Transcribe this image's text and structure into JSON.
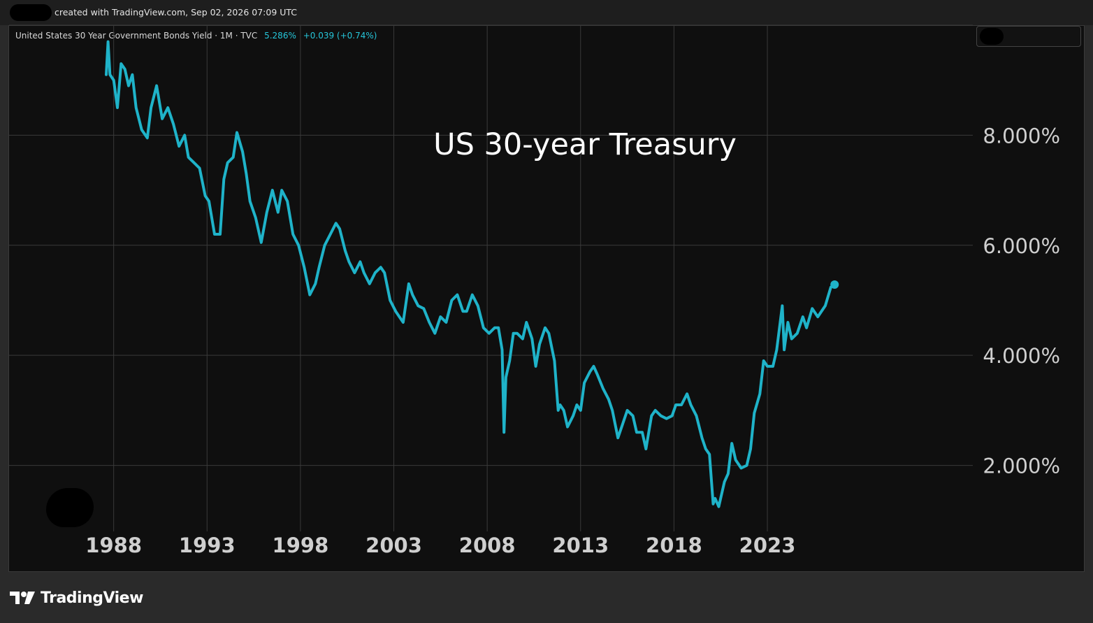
{
  "header": {
    "created_text": "created with TradingView.com, Sep 02, 2026 07:09 UTC"
  },
  "legend": {
    "symbol_text": "United States 30 Year Government Bonds Yield · 1M · TVC",
    "last_value": "5.286%",
    "change": "+0.039 (+0.74%)"
  },
  "footer": {
    "brand": "TradingView"
  },
  "colors": {
    "line": "#1fb3c9",
    "background": "#0f0f0f",
    "grid": "#3a3a3a",
    "axis_text": "#cfcfcf",
    "accent": "#26c6da"
  },
  "chart_data": {
    "type": "line",
    "title": "US 30-year Treasury",
    "xlabel": "",
    "ylabel": "",
    "ylim": [
      0.8,
      10.0
    ],
    "xlim": [
      1982.4,
      2034.0
    ],
    "grid": true,
    "y_ticks": [
      {
        "value": 2,
        "label": "2.000%"
      },
      {
        "value": 4,
        "label": "4.000%"
      },
      {
        "value": 6,
        "label": "6.000%"
      },
      {
        "value": 8,
        "label": "8.000%"
      }
    ],
    "x_ticks": [
      {
        "value": 1988,
        "label": "1988"
      },
      {
        "value": 1993,
        "label": "1993"
      },
      {
        "value": 1998,
        "label": "1998"
      },
      {
        "value": 2003,
        "label": "2003"
      },
      {
        "value": 2008,
        "label": "2008"
      },
      {
        "value": 2013,
        "label": "2013"
      },
      {
        "value": 2018,
        "label": "2018"
      },
      {
        "value": 2023,
        "label": "2023"
      }
    ],
    "series": [
      {
        "x": [
          1987.6,
          1987.7,
          1987.8,
          1988.0,
          1988.2,
          1988.4,
          1988.6,
          1988.8,
          1989.0,
          1989.2,
          1989.5,
          1989.8,
          1990.0,
          1990.3,
          1990.6,
          1990.9,
          1991.2,
          1991.5,
          1991.8,
          1992.0,
          1992.3,
          1992.6,
          1992.9,
          1993.1,
          1993.4,
          1993.7,
          1993.9,
          1994.1,
          1994.4,
          1994.6,
          1994.9,
          1995.1,
          1995.3,
          1995.6,
          1995.9,
          1996.2,
          1996.5,
          1996.8,
          1997.0,
          1997.3,
          1997.6,
          1997.9,
          1998.2,
          1998.5,
          1998.8,
          1999.0,
          1999.3,
          1999.6,
          1999.9,
          2000.1,
          2000.4,
          2000.6,
          2000.9,
          2001.2,
          2001.4,
          2001.7,
          2002.0,
          2002.3,
          2002.5,
          2002.8,
          2003.1,
          2003.3,
          2003.5,
          2003.8,
          2004.0,
          2004.3,
          2004.6,
          2004.9,
          2005.2,
          2005.5,
          2005.8,
          2006.1,
          2006.4,
          2006.7,
          2006.9,
          2007.2,
          2007.5,
          2007.8,
          2008.1,
          2008.4,
          2008.6,
          2008.8,
          2008.9,
          2009.0,
          2009.2,
          2009.4,
          2009.6,
          2009.9,
          2010.1,
          2010.4,
          2010.6,
          2010.8,
          2011.1,
          2011.3,
          2011.6,
          2011.8,
          2011.9,
          2012.1,
          2012.3,
          2012.6,
          2012.8,
          2013.0,
          2013.2,
          2013.5,
          2013.7,
          2013.9,
          2014.2,
          2014.5,
          2014.7,
          2015.0,
          2015.2,
          2015.5,
          2015.8,
          2016.0,
          2016.3,
          2016.5,
          2016.8,
          2017.0,
          2017.3,
          2017.6,
          2017.9,
          2018.1,
          2018.4,
          2018.7,
          2018.9,
          2019.2,
          2019.5,
          2019.7,
          2019.9,
          2020.1,
          2020.2,
          2020.4,
          2020.7,
          2020.9,
          2021.1,
          2021.3,
          2021.6,
          2021.9,
          2022.1,
          2022.3,
          2022.6,
          2022.8,
          2023.0,
          2023.3,
          2023.5,
          2023.8,
          2023.9,
          2024.1,
          2024.3,
          2024.6,
          2024.9,
          2025.1,
          2025.4,
          2025.7,
          2025.9,
          2026.1,
          2026.4,
          2026.6
        ],
        "values": [
          9.1,
          9.7,
          9.1,
          9.0,
          8.5,
          9.3,
          9.2,
          8.9,
          9.1,
          8.5,
          8.1,
          7.95,
          8.5,
          8.9,
          8.3,
          8.5,
          8.2,
          7.8,
          8.0,
          7.6,
          7.5,
          7.4,
          6.9,
          6.8,
          6.2,
          6.2,
          7.2,
          7.5,
          7.6,
          8.05,
          7.7,
          7.3,
          6.8,
          6.5,
          6.05,
          6.6,
          7.0,
          6.6,
          7.0,
          6.8,
          6.2,
          6.0,
          5.6,
          5.1,
          5.3,
          5.6,
          6.0,
          6.2,
          6.4,
          6.3,
          5.9,
          5.7,
          5.5,
          5.7,
          5.5,
          5.3,
          5.5,
          5.6,
          5.5,
          5.0,
          4.8,
          4.7,
          4.6,
          5.3,
          5.1,
          4.9,
          4.85,
          4.6,
          4.4,
          4.7,
          4.6,
          5.0,
          5.1,
          4.8,
          4.8,
          5.1,
          4.9,
          4.5,
          4.4,
          4.5,
          4.5,
          4.1,
          2.6,
          3.6,
          3.9,
          4.4,
          4.4,
          4.3,
          4.6,
          4.3,
          3.8,
          4.2,
          4.5,
          4.4,
          3.9,
          3.0,
          3.1,
          3.0,
          2.7,
          2.9,
          3.1,
          3.0,
          3.5,
          3.7,
          3.8,
          3.65,
          3.4,
          3.2,
          3.0,
          2.5,
          2.7,
          3.0,
          2.9,
          2.6,
          2.6,
          2.3,
          2.9,
          3.0,
          2.9,
          2.85,
          2.9,
          3.1,
          3.1,
          3.3,
          3.1,
          2.9,
          2.5,
          2.3,
          2.2,
          1.3,
          1.4,
          1.25,
          1.7,
          1.85,
          2.4,
          2.1,
          1.95,
          2.0,
          2.3,
          2.95,
          3.3,
          3.9,
          3.8,
          3.8,
          4.1,
          4.9,
          4.1,
          4.6,
          4.3,
          4.4,
          4.7,
          4.5,
          4.85,
          4.7,
          4.8,
          4.9,
          5.24,
          5.286
        ]
      }
    ]
  }
}
